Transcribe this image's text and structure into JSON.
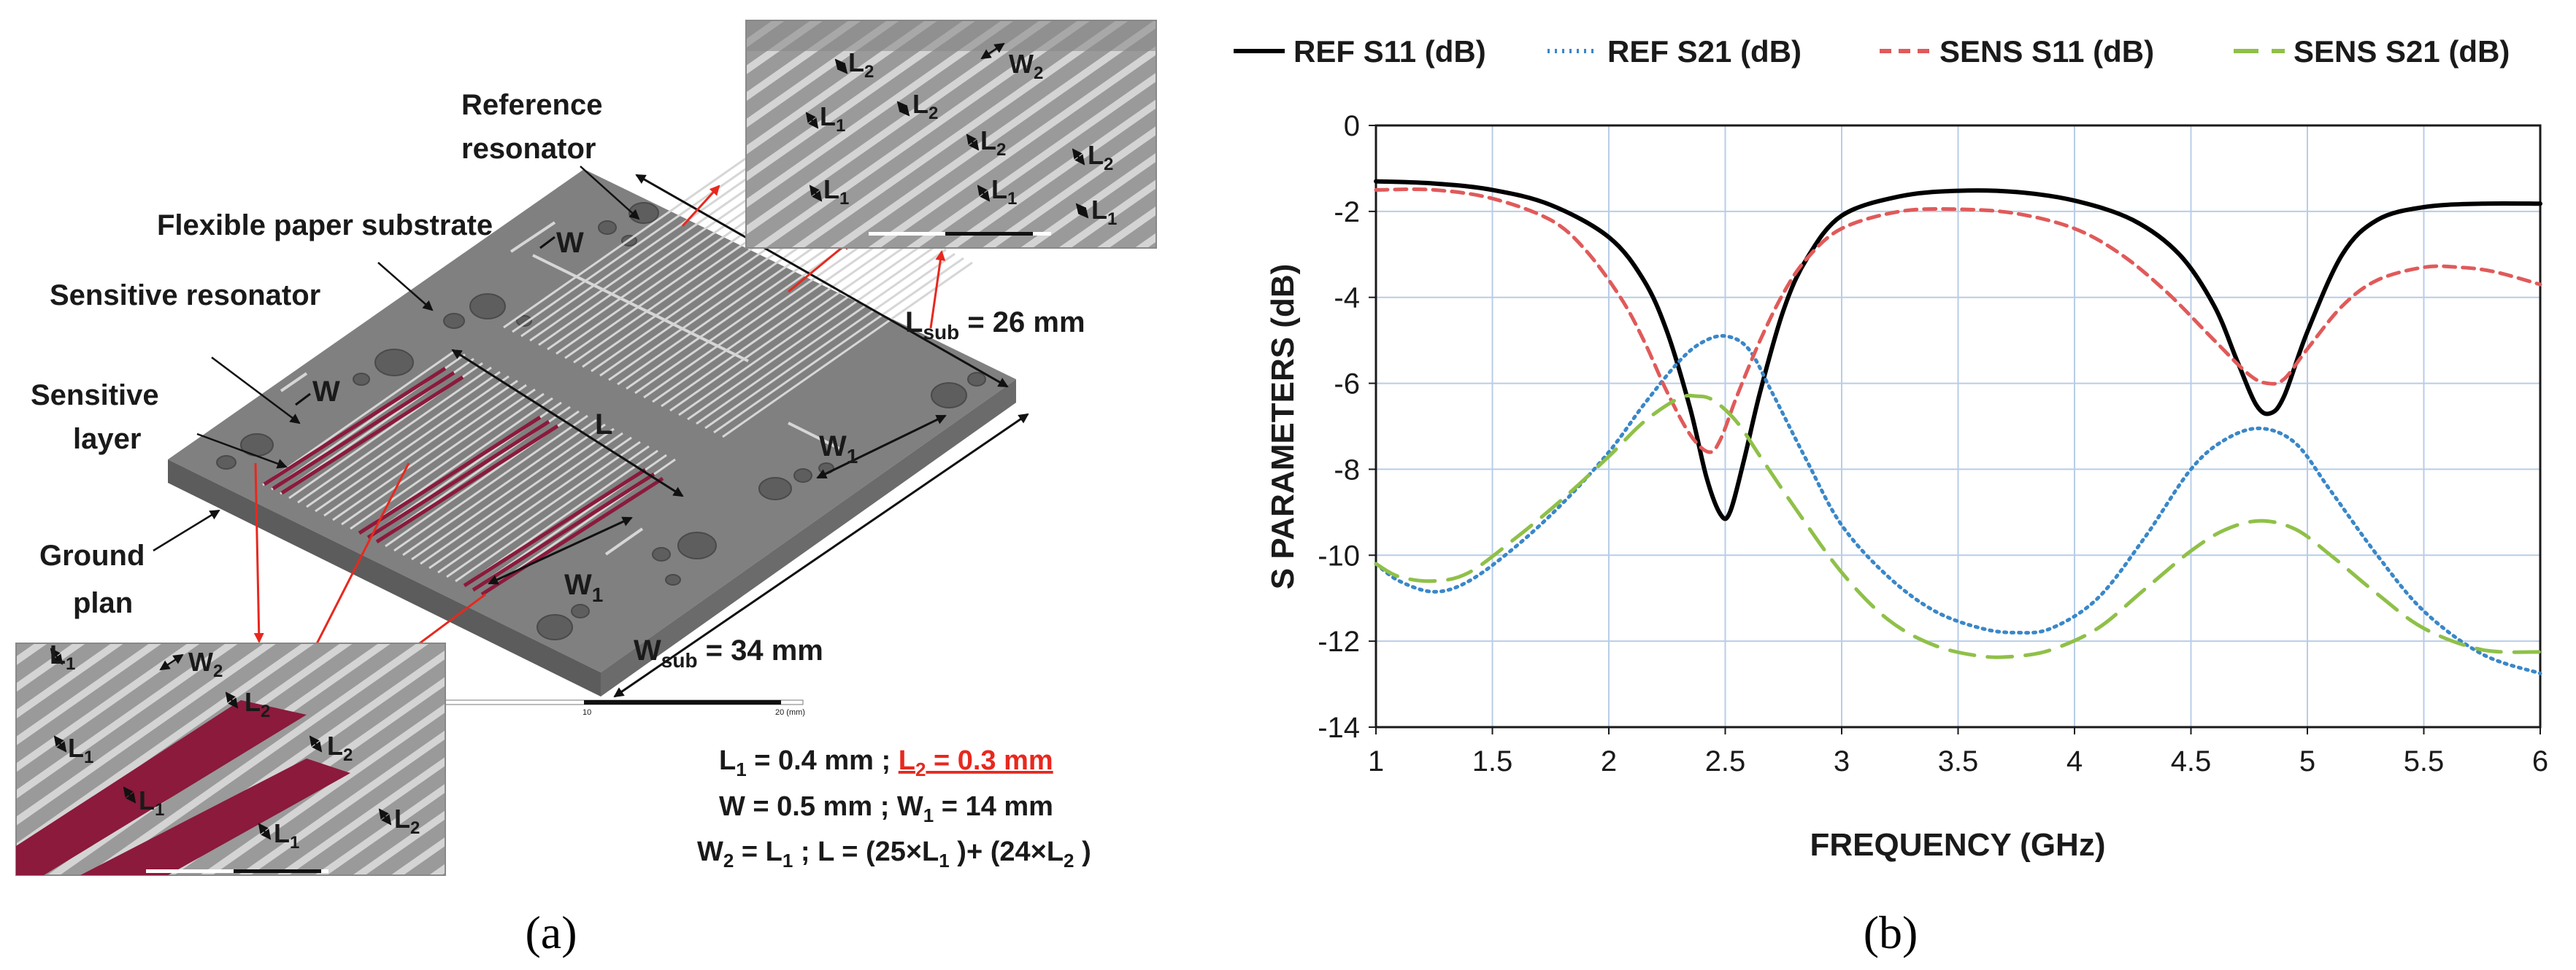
{
  "panel_a": {
    "caption": "(a)",
    "labels": {
      "reference_resonator_line1": "Reference",
      "reference_resonator_line2": "resonator",
      "flexible_substrate": "Flexible paper substrate",
      "sensitive_resonator": "Sensitive resonator",
      "sensitive_layer_line1": "Sensitive",
      "sensitive_layer_line2": "layer",
      "ground_plan_line1": "Ground",
      "ground_plan_line2": "plan",
      "W": "W",
      "L": "L",
      "W1": "W",
      "W1_sub": "1",
      "W2": "W",
      "W2_sub": "2",
      "L1": "L",
      "L1_sub": "1",
      "L2": "L",
      "L2_sub": "2",
      "Lsub_main": "L",
      "Lsub_sub": "sub",
      "Lsub_value": " = 26 mm",
      "Wsub_main": "W",
      "Wsub_sub": "sub",
      "Wsub_value": " = 34 mm",
      "scale_10": "10",
      "scale_20": "20 (mm)"
    },
    "params": {
      "line1_a": "L",
      "line1_a_sub": "1",
      "line1_b": " = 0.4 mm ; ",
      "line1_red": "L",
      "line1_red_sub": "2",
      "line1_red_rest": " = 0.3 mm",
      "line2": "W = 0.5 mm ; W",
      "line2_sub": "1",
      "line2_rest": " = 14 mm",
      "line3_a": "W",
      "line3_a_sub": "2",
      "line3_b": " = L",
      "line3_b_sub": "1",
      "line3_c": " ; L = (25×L",
      "line3_c_sub": "1",
      "line3_d": " )+ (24×L",
      "line3_d_sub": "2",
      "line3_e": " )"
    },
    "colors": {
      "substrate_top": "#7f7f7f",
      "substrate_side": "#5a5a5a",
      "sensitive_layer": "#8b1a3c",
      "line": "#d8d8d8",
      "arrow_red": "#e8281e"
    }
  },
  "panel_b": {
    "caption": "(b)",
    "chart_data": {
      "type": "line",
      "xlabel": "FREQUENCY (GHz)",
      "ylabel": "S PARAMETERS (dB)",
      "xlim": [
        1,
        6
      ],
      "ylim": [
        -14,
        0
      ],
      "xticks": [
        "1",
        "1.5",
        "2",
        "2.5",
        "3",
        "3.5",
        "4",
        "4.5",
        "5",
        "5.5",
        "6"
      ],
      "yticks": [
        "0",
        "-2",
        "-4",
        "-6",
        "-8",
        "-10",
        "-12",
        "-14"
      ],
      "grid": true,
      "legend_position": "top",
      "series": [
        {
          "name": "REF S11 (dB)",
          "color": "#000000",
          "style": "solid",
          "x": [
            1,
            1.25,
            1.5,
            1.75,
            2.0,
            2.15,
            2.25,
            2.35,
            2.42,
            2.48,
            2.52,
            2.58,
            2.65,
            2.75,
            2.85,
            3.0,
            3.25,
            3.5,
            3.75,
            4.0,
            4.25,
            4.45,
            4.6,
            4.7,
            4.78,
            4.84,
            4.9,
            5.0,
            5.15,
            5.3,
            5.5,
            5.75,
            6.0
          ],
          "y": [
            -1.3,
            -1.35,
            -1.5,
            -1.85,
            -2.6,
            -3.6,
            -4.8,
            -6.6,
            -8.2,
            -9.05,
            -9.0,
            -7.8,
            -6.2,
            -4.3,
            -3.1,
            -2.1,
            -1.65,
            -1.52,
            -1.55,
            -1.75,
            -2.2,
            -3.0,
            -4.2,
            -5.5,
            -6.5,
            -6.7,
            -6.3,
            -4.8,
            -3.0,
            -2.2,
            -1.9,
            -1.82,
            -1.82
          ]
        },
        {
          "name": "REF S21 (dB)",
          "color": "#3a87c8",
          "style": "dotted",
          "x": [
            1,
            1.1,
            1.25,
            1.4,
            1.6,
            1.8,
            2.0,
            2.15,
            2.3,
            2.4,
            2.5,
            2.6,
            2.7,
            2.85,
            3.0,
            3.2,
            3.4,
            3.6,
            3.75,
            3.9,
            4.1,
            4.3,
            4.5,
            4.65,
            4.8,
            4.95,
            5.1,
            5.3,
            5.5,
            5.75,
            6.0
          ],
          "y": [
            -10.2,
            -10.6,
            -10.85,
            -10.6,
            -9.8,
            -8.8,
            -7.6,
            -6.5,
            -5.5,
            -5.05,
            -4.9,
            -5.2,
            -6.2,
            -7.8,
            -9.3,
            -10.5,
            -11.3,
            -11.7,
            -11.8,
            -11.7,
            -11.0,
            -9.6,
            -8.0,
            -7.3,
            -7.05,
            -7.4,
            -8.5,
            -10.0,
            -11.3,
            -12.3,
            -12.75
          ]
        },
        {
          "name": "SENS S11 (dB)",
          "color": "#e05a5a",
          "style": "dashed",
          "x": [
            1,
            1.25,
            1.5,
            1.75,
            1.9,
            2.05,
            2.15,
            2.25,
            2.35,
            2.43,
            2.48,
            2.55,
            2.65,
            2.75,
            2.85,
            3.0,
            3.25,
            3.5,
            3.75,
            4.0,
            4.2,
            4.4,
            4.6,
            4.75,
            4.83,
            4.9,
            5.0,
            5.15,
            5.3,
            5.5,
            5.65,
            5.8,
            6.0
          ],
          "y": [
            -1.5,
            -1.5,
            -1.7,
            -2.2,
            -2.9,
            -4.0,
            -5.0,
            -6.2,
            -7.2,
            -7.6,
            -7.3,
            -6.3,
            -5.0,
            -3.9,
            -3.1,
            -2.4,
            -2.0,
            -1.95,
            -2.05,
            -2.4,
            -3.0,
            -3.9,
            -5.0,
            -5.8,
            -6.0,
            -5.9,
            -5.2,
            -4.2,
            -3.6,
            -3.3,
            -3.3,
            -3.4,
            -3.7
          ]
        },
        {
          "name": "SENS S21 (dB)",
          "color": "#8fc048",
          "style": "longdash",
          "x": [
            1,
            1.1,
            1.25,
            1.4,
            1.6,
            1.8,
            2.0,
            2.15,
            2.3,
            2.38,
            2.45,
            2.55,
            2.65,
            2.8,
            3.0,
            3.2,
            3.4,
            3.6,
            3.75,
            3.9,
            4.1,
            4.3,
            4.5,
            4.65,
            4.8,
            4.95,
            5.1,
            5.3,
            5.5,
            5.75,
            6.0
          ],
          "y": [
            -10.2,
            -10.5,
            -10.6,
            -10.4,
            -9.6,
            -8.7,
            -7.7,
            -6.9,
            -6.35,
            -6.3,
            -6.4,
            -6.9,
            -7.7,
            -8.9,
            -10.4,
            -11.5,
            -12.1,
            -12.35,
            -12.35,
            -12.2,
            -11.7,
            -10.8,
            -9.9,
            -9.4,
            -9.2,
            -9.4,
            -10.0,
            -10.9,
            -11.7,
            -12.2,
            -12.25
          ]
        }
      ]
    }
  }
}
